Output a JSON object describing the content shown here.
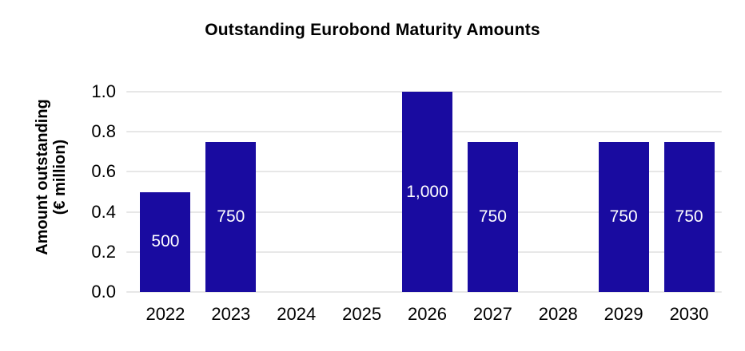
{
  "title": "Outstanding Eurobond Maturity Amounts",
  "y_axis": {
    "label_lines": [
      "Amount outstanding",
      "(€ million)"
    ],
    "tick_labels": [
      "0.0",
      "0.2",
      "0.4",
      "0.6",
      "0.8",
      "1.0"
    ],
    "tick_values": [
      0.0,
      0.2,
      0.4,
      0.6,
      0.8,
      1.0
    ]
  },
  "chart_data": {
    "type": "bar",
    "title": "Outstanding Eurobond Maturity Amounts",
    "xlabel": "",
    "ylabel": "Amount outstanding (€ million)",
    "categories": [
      "2022",
      "2023",
      "2024",
      "2025",
      "2026",
      "2027",
      "2028",
      "2029",
      "2030"
    ],
    "values_eur_million": [
      500,
      750,
      0,
      0,
      1000,
      750,
      0,
      750,
      750
    ],
    "bar_value_labels": [
      "500",
      "750",
      "",
      "",
      "1,000",
      "750",
      "",
      "750",
      "750"
    ],
    "axis_scale_values": [
      0.5,
      0.75,
      0,
      0,
      1.0,
      0.75,
      0,
      0.75,
      0.75
    ],
    "ylim": [
      0.0,
      1.0
    ],
    "ytick_step": 0.2,
    "grid": "horizontal",
    "legend": "none",
    "colors": {
      "bar": "#190BA0",
      "gridline": "#E7E7E7",
      "bar_label_text": "#FFFFFF",
      "axis_text": "#000000",
      "background": "#FFFFFF"
    }
  }
}
